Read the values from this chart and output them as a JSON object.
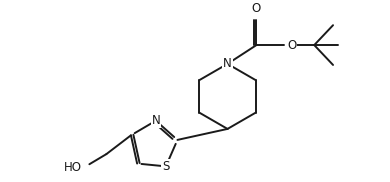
{
  "background": "#ffffff",
  "line_color": "#1a1a1a",
  "line_width": 1.4,
  "font_size": 8.5,
  "figsize": [
    3.9,
    1.82
  ],
  "dpi": 100,
  "xlim": [
    0.0,
    10.0
  ],
  "ylim": [
    0.2,
    5.0
  ]
}
